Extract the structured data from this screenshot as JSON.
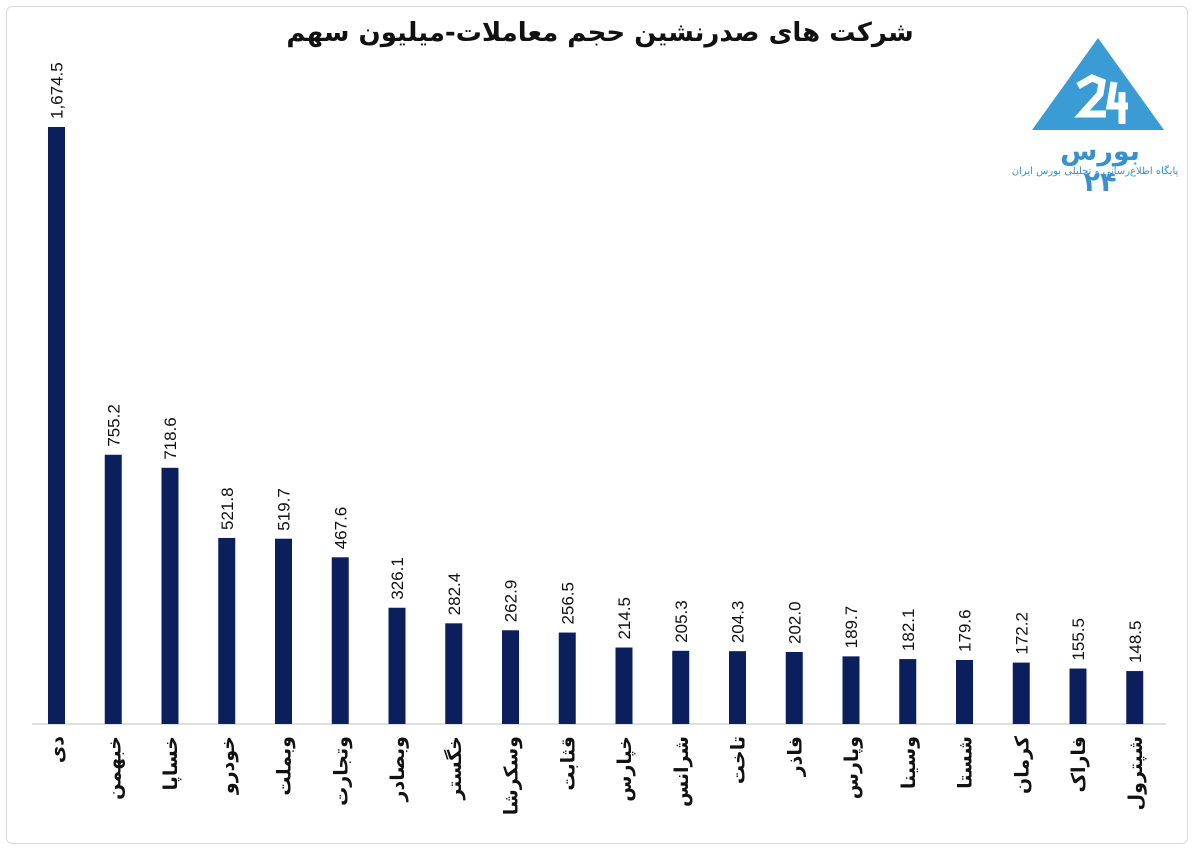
{
  "chart_data": {
    "type": "bar",
    "title": "شرکت های صدرنشین حجم معاملات-میلیون سهم",
    "categories": [
      "دی",
      "خبهمن",
      "خساپا",
      "خودرو",
      "وبملت",
      "وتجارت",
      "وبصادر",
      "خگستر",
      "وسکرشا",
      "قثابت",
      "خپارس",
      "شرانس",
      "تاخت",
      "فاذر",
      "وپارس",
      "وسینا",
      "شستا",
      "کرمان",
      "فاراک",
      "شپترول"
    ],
    "values": [
      1674.5,
      755.2,
      718.6,
      521.8,
      519.7,
      467.6,
      326.1,
      282.4,
      262.9,
      256.5,
      214.5,
      205.3,
      204.3,
      202.0,
      189.7,
      182.1,
      179.6,
      172.2,
      155.5,
      148.5
    ],
    "value_labels": [
      "1,674.5",
      "755.2",
      "718.6",
      "521.8",
      "519.7",
      "467.6",
      "326.1",
      "282.4",
      "262.9",
      "256.5",
      "214.5",
      "205.3",
      "204.3",
      "202.0",
      "189.7",
      "182.1",
      "179.6",
      "172.2",
      "155.5",
      "148.5"
    ],
    "ylim": [
      0,
      1674.5
    ],
    "bar_color": "#0b1f5c",
    "grid": false,
    "legend": "none"
  },
  "logo": {
    "brand_text": "بورس ۲۴",
    "tagline": "پایگاه اطلاع‌رسانی و تحلیلی بورس ایران",
    "logo_color": "#3a9bd5"
  }
}
